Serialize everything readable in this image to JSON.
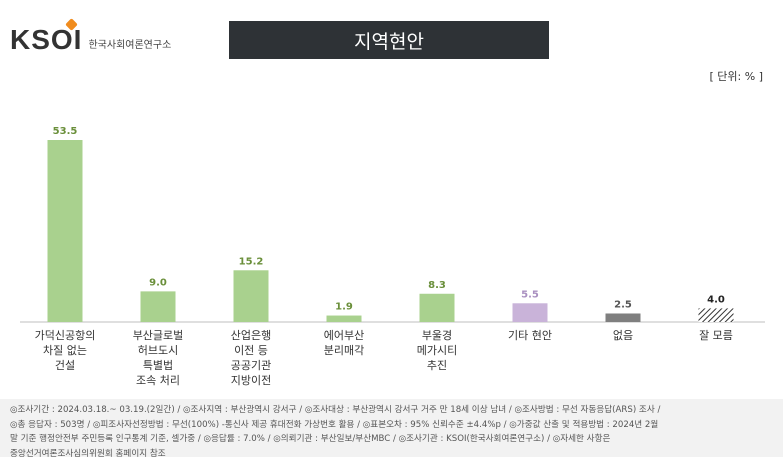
{
  "header": {
    "logo_mark": "KSOI",
    "logo_text": "한국사회여론연구소",
    "title": "지역현안",
    "unit": "[ 단위: % ]"
  },
  "colors": {
    "green": "#a9d18e",
    "purple": "#c9b3d9",
    "gray": "#7f7f7f",
    "hatch": "#333333",
    "title_bg": "#2e3236"
  },
  "chart_data": {
    "type": "bar",
    "categories": [
      [
        "가덕신공항의",
        "차질 없는",
        "건설"
      ],
      [
        "부산글로벌",
        "허브도시",
        "특별법",
        "조속 처리"
      ],
      [
        "산업은행",
        "이전 등",
        "공공기관",
        "지방이전"
      ],
      [
        "에어부산",
        "분리매각"
      ],
      [
        "부울경",
        "메가시티",
        "추진"
      ],
      [
        "기타 현안"
      ],
      [
        "없음"
      ],
      [
        "잘 모름"
      ]
    ],
    "values": [
      53.5,
      9.0,
      15.2,
      1.9,
      8.3,
      5.5,
      2.5,
      4.0
    ],
    "value_labels": [
      "53.5",
      "9.0",
      "15.2",
      "1.9",
      "8.3",
      "5.5",
      "2.5",
      "4.0"
    ],
    "bar_styles": [
      "green",
      "green",
      "green",
      "green",
      "green",
      "purple",
      "gray",
      "hatch"
    ],
    "label_colors": [
      "#6a8f3a",
      "#6a8f3a",
      "#6a8f3a",
      "#6a8f3a",
      "#6a8f3a",
      "#a98fc0",
      "#555555",
      "#222222"
    ],
    "ylim": [
      0,
      60
    ]
  },
  "footer": {
    "lines": [
      "◎조사기간 : 2024.03.18.~ 03.19.(2일간) / ◎조사지역 : 부산광역시 강서구 / ◎조사대상 : 부산광역시 강서구 거주 만 18세 이상 남녀 / ◎조사방법 : 무선 자동응답(ARS) 조사 /",
      "◎총 응답자 : 503명 / ◎피조사자선정방법 : 무선(100%) -통신사 제공 휴대전화 가상번호 활용 / ◎표본오차 : 95% 신뢰수준 ±4.4%p / ◎가중값 산출 및 적용방법 : 2024년 2월",
      "말 기준 행정안전부 주민등록 인구통계 기준, 셀가중 / ◎응답률 : 7.0% / ◎의뢰기관 : 부산일보/부산MBC / ◎조사기관 : KSOI(한국사회여론연구소) / ◎자세한 사항은",
      "중앙선거여론조사심의위원회 홈페이지 참조"
    ]
  }
}
